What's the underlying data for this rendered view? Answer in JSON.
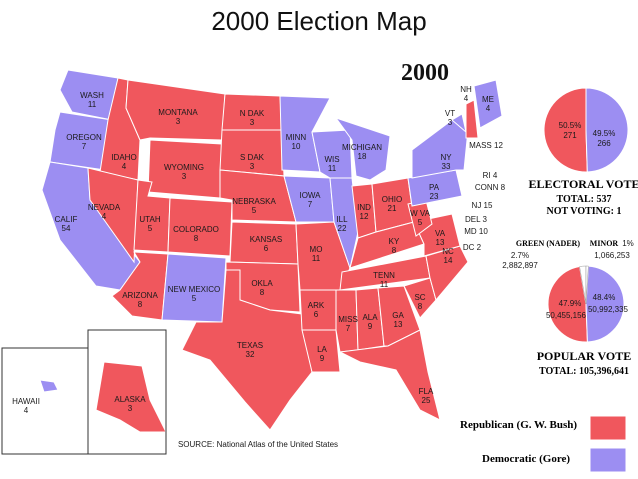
{
  "slide_title": "2000 Election Map",
  "map_year": "2000",
  "colors": {
    "republican": "#f0575d",
    "democratic": "#9c8ef2"
  },
  "states": [
    {
      "id": "wa",
      "name": "WASH",
      "ev": "11",
      "party": "D"
    },
    {
      "id": "or",
      "name": "OREGON",
      "ev": "7",
      "party": "D"
    },
    {
      "id": "ca",
      "name": "CALIF",
      "ev": "54",
      "party": "D"
    },
    {
      "id": "id",
      "name": "IDAHO",
      "ev": "4",
      "party": "R"
    },
    {
      "id": "nv",
      "name": "NEVADA",
      "ev": "4",
      "party": "R"
    },
    {
      "id": "mt",
      "name": "MONTANA",
      "ev": "3",
      "party": "R"
    },
    {
      "id": "wy",
      "name": "WYOMING",
      "ev": "3",
      "party": "R"
    },
    {
      "id": "ut",
      "name": "UTAH",
      "ev": "5",
      "party": "R"
    },
    {
      "id": "az",
      "name": "ARIZONA",
      "ev": "8",
      "party": "R"
    },
    {
      "id": "co",
      "name": "COLORADO",
      "ev": "8",
      "party": "R"
    },
    {
      "id": "nm",
      "name": "NEW MEXICO",
      "ev": "5",
      "party": "D"
    },
    {
      "id": "nd",
      "name": "N DAK",
      "ev": "3",
      "party": "R"
    },
    {
      "id": "sd",
      "name": "S DAK",
      "ev": "3",
      "party": "R"
    },
    {
      "id": "ne",
      "name": "NEBRASKA",
      "ev": "5",
      "party": "R"
    },
    {
      "id": "ks",
      "name": "KANSAS",
      "ev": "6",
      "party": "R"
    },
    {
      "id": "ok",
      "name": "OKLA",
      "ev": "8",
      "party": "R"
    },
    {
      "id": "tx",
      "name": "TEXAS",
      "ev": "32",
      "party": "R"
    },
    {
      "id": "mn",
      "name": "MINN",
      "ev": "10",
      "party": "D"
    },
    {
      "id": "ia",
      "name": "IOWA",
      "ev": "7",
      "party": "D"
    },
    {
      "id": "mo",
      "name": "MO",
      "ev": "11",
      "party": "R"
    },
    {
      "id": "ar",
      "name": "ARK",
      "ev": "6",
      "party": "R"
    },
    {
      "id": "la",
      "name": "LA",
      "ev": "9",
      "party": "R"
    },
    {
      "id": "wi",
      "name": "WIS",
      "ev": "11",
      "party": "D"
    },
    {
      "id": "il",
      "name": "ILL",
      "ev": "22",
      "party": "D"
    },
    {
      "id": "mi",
      "name": "MICHIGAN",
      "ev": "18",
      "party": "D"
    },
    {
      "id": "in",
      "name": "IND",
      "ev": "12",
      "party": "R"
    },
    {
      "id": "oh",
      "name": "OHIO",
      "ev": "21",
      "party": "R"
    },
    {
      "id": "ky",
      "name": "KY",
      "ev": "8",
      "party": "R"
    },
    {
      "id": "tn",
      "name": "TENN",
      "ev": "11",
      "party": "R"
    },
    {
      "id": "ms",
      "name": "MISS",
      "ev": "7",
      "party": "R"
    },
    {
      "id": "al",
      "name": "ALA",
      "ev": "9",
      "party": "R"
    },
    {
      "id": "ga",
      "name": "GA",
      "ev": "13",
      "party": "R"
    },
    {
      "id": "fl",
      "name": "FLA",
      "ev": "25",
      "party": "R"
    },
    {
      "id": "sc",
      "name": "SC",
      "ev": "8",
      "party": "R"
    },
    {
      "id": "nc",
      "name": "NC",
      "ev": "14",
      "party": "R"
    },
    {
      "id": "va",
      "name": "VA",
      "ev": "13",
      "party": "R"
    },
    {
      "id": "wv",
      "name": "W VA",
      "ev": "5",
      "party": "R"
    },
    {
      "id": "pa",
      "name": "PA",
      "ev": "23",
      "party": "D"
    },
    {
      "id": "ny",
      "name": "NY",
      "ev": "33",
      "party": "D"
    },
    {
      "id": "vt",
      "name": "VT",
      "ev": "3",
      "party": "D"
    },
    {
      "id": "nh",
      "name": "NH",
      "ev": "4",
      "party": "R"
    },
    {
      "id": "me",
      "name": "ME",
      "ev": "4",
      "party": "D"
    },
    {
      "id": "ak",
      "name": "ALASKA",
      "ev": "3",
      "party": "R"
    },
    {
      "id": "hi",
      "name": "HAWAII",
      "ev": "4",
      "party": "D"
    }
  ],
  "callouts": [
    {
      "id": "mass",
      "text": "MASS 12"
    },
    {
      "id": "ri",
      "text": "RI 4"
    },
    {
      "id": "conn",
      "text": "CONN 8"
    },
    {
      "id": "nj",
      "text": "NJ 15"
    },
    {
      "id": "del",
      "text": "DEL 3"
    },
    {
      "id": "md",
      "text": "MD 10"
    },
    {
      "id": "dc",
      "text": "DC 2"
    }
  ],
  "electoral_pie": {
    "rep_pct": "50.5%",
    "rep_votes": "271",
    "dem_pct": "49.5%",
    "dem_votes": "266",
    "heading": "ELECTORAL VOTE",
    "total": "TOTAL: 537",
    "not_voting": "NOT VOTING: 1"
  },
  "popular_pie": {
    "green_label": "GREEN (NADER)",
    "green_pct": "2.7%",
    "green_votes": "2,882,897",
    "minor_label": "MINOR",
    "minor_pct": "1%",
    "minor_votes": "1,066,253",
    "rep_pct": "47.9%",
    "rep_votes": "50,455,156",
    "dem_pct": "48.4%",
    "dem_votes": "50,992,335",
    "heading": "POPULAR VOTE",
    "total": "TOTAL: 105,396,641"
  },
  "legend": {
    "republican": "Republican (G. W. Bush)",
    "democratic": "Democratic (Gore)"
  },
  "source": "SOURCE: National Atlas of the United States"
}
